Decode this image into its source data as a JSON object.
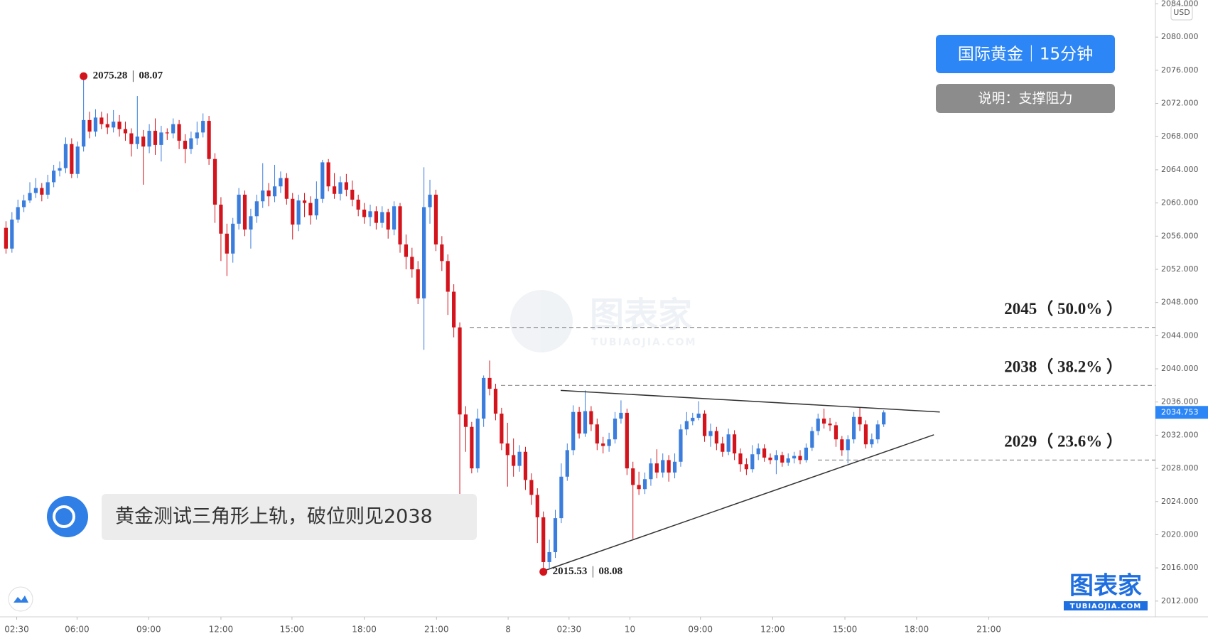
{
  "chart_data": {
    "type": "candlestick",
    "title": "国际黄金｜15分钟",
    "subtitle": "说明：支撑阻力",
    "annotation": "黄金测试三角形上轨，破位则见2038",
    "currency": "USD",
    "watermark": {
      "name": "图表家",
      "url": "TUBIAOJIA.COM"
    },
    "up_color": "#3b7ddd",
    "down_color": "#d3141c",
    "open": [
      2057.0,
      2054.5,
      2058.0,
      2059.5,
      2060.3,
      2061.2,
      2061.8,
      2061.0,
      2062.5,
      2063.9,
      2064.2,
      2067.1,
      2063.5,
      2066.8,
      2070.0,
      2068.6,
      2070.3,
      2069.5,
      2069.1,
      2069.8,
      2068.9,
      2068.4,
      2067.1,
      2068.0,
      2066.8,
      2068.7,
      2067.0,
      2068.5,
      2068.4,
      2069.5,
      2067.5,
      2066.5,
      2067.8,
      2068.5,
      2069.9,
      2065.3,
      2059.8,
      2056.3,
      2053.9,
      2057.5,
      2061.0,
      2056.8,
      2058.4,
      2060.2,
      2061.5,
      2060.8,
      2062.0,
      2063.0,
      2060.5,
      2057.4,
      2060.3,
      2060.0,
      2058.5,
      2060.5,
      2064.9,
      2062.0,
      2061.1,
      2062.5,
      2061.6,
      2060.4,
      2059.2,
      2058.3,
      2059.0,
      2057.6,
      2058.9,
      2056.8,
      2059.6,
      2055.0,
      2053.5,
      2052.0,
      2048.5,
      2059.5,
      2061.0,
      2055.0,
      2053.0,
      2049.3,
      2045.0,
      2034.5,
      2033.0,
      2028.0,
      2034.0,
      2038.9,
      2037.6,
      2034.6,
      2031.0,
      2029.6,
      2028.3,
      2030.0,
      2026.6,
      2024.8,
      2022.1,
      2016.7,
      2017.9,
      2022.0,
      2027.0,
      2030.2,
      2034.8,
      2032.2,
      2034.9,
      2033.3,
      2031.0,
      2030.7,
      2031.5,
      2034.0,
      2034.7,
      2028.0,
      2026.0,
      2025.5,
      2026.7,
      2028.6,
      2027.5,
      2029.0,
      2027.5,
      2028.8,
      2032.7,
      2033.7,
      2034.1,
      2034.6,
      2031.9,
      2032.5,
      2031.0,
      2030.0,
      2032.1,
      2029.8,
      2028.5,
      2027.9,
      2029.7,
      2030.4,
      2029.3,
      2029.0,
      2029.6,
      2028.7,
      2029.2,
      2029.5,
      2029.0,
      2030.5,
      2032.5,
      2034.0,
      2033.4,
      2033.2,
      2031.5,
      2030.2,
      2031.5,
      2034.2,
      2033.3,
      2030.9,
      2031.5,
      2033.3
    ],
    "high": [
      2057.8,
      2058.9,
      2060.4,
      2061.0,
      2062.5,
      2063.0,
      2062.4,
      2063.4,
      2064.6,
      2065.0,
      2067.9,
      2067.8,
      2067.4,
      2075.28,
      2071.0,
      2071.3,
      2071.0,
      2070.8,
      2071.2,
      2070.6,
      2069.8,
      2069.0,
      2072.9,
      2068.8,
      2069.5,
      2070.2,
      2069.3,
      2069.0,
      2070.2,
      2070.0,
      2068.3,
      2068.6,
      2069.8,
      2070.8,
      2070.5,
      2066.0,
      2060.7,
      2057.5,
      2058.2,
      2061.8,
      2061.5,
      2059.3,
      2061.0,
      2064.8,
      2062.4,
      2064.6,
      2063.8,
      2063.6,
      2061.2,
      2061.0,
      2061.2,
      2060.8,
      2062.6,
      2065.2,
      2065.3,
      2063.6,
      2063.2,
      2063.5,
      2062.7,
      2061.0,
      2060.0,
      2059.8,
      2059.6,
      2059.6,
      2059.3,
      2060.2,
      2060.0,
      2056.2,
      2054.6,
      2053.0,
      2064.3,
      2062.8,
      2061.6,
      2056.0,
      2053.8,
      2050.2,
      2045.6,
      2035.5,
      2033.6,
      2035.2,
      2039.2,
      2041.0,
      2038.2,
      2035.3,
      2033.5,
      2031.6,
      2030.8,
      2030.6,
      2027.4,
      2025.6,
      2022.8,
      2019.4,
      2023.0,
      2028.6,
      2031.0,
      2035.6,
      2035.4,
      2037.4,
      2035.5,
      2034.0,
      2031.8,
      2032.3,
      2034.8,
      2036.2,
      2035.2,
      2028.8,
      2027.6,
      2027.5,
      2029.2,
      2030.3,
      2029.8,
      2029.6,
      2029.8,
      2033.3,
      2034.8,
      2034.7,
      2036.1,
      2035.0,
      2033.4,
      2033.0,
      2031.8,
      2032.8,
      2032.6,
      2030.4,
      2029.2,
      2030.8,
      2031.0,
      2030.9,
      2029.8,
      2030.2,
      2030.0,
      2029.8,
      2030.0,
      2030.2,
      2031.0,
      2033.0,
      2034.6,
      2035.2,
      2034.1,
      2033.6,
      2031.9,
      2032.0,
      2034.8,
      2035.3,
      2033.8,
      2032.2,
      2033.8,
      2035.0
    ],
    "low": [
      2053.9,
      2054.0,
      2057.6,
      2058.9,
      2060.0,
      2060.6,
      2060.2,
      2060.5,
      2061.9,
      2063.2,
      2063.6,
      2063.0,
      2063.0,
      2066.2,
      2067.8,
      2068.0,
      2068.9,
      2068.3,
      2068.5,
      2068.0,
      2067.5,
      2065.6,
      2066.5,
      2062.2,
      2066.0,
      2065.8,
      2065.0,
      2067.6,
      2067.8,
      2066.5,
      2064.8,
      2065.9,
      2067.0,
      2067.9,
      2064.6,
      2057.6,
      2053.0,
      2051.2,
      2052.8,
      2056.8,
      2056.0,
      2054.5,
      2057.6,
      2059.4,
      2059.6,
      2060.1,
      2061.2,
      2059.8,
      2055.6,
      2056.6,
      2058.3,
      2057.4,
      2058.0,
      2060.0,
      2061.4,
      2060.5,
      2060.3,
      2060.8,
      2059.6,
      2058.4,
      2057.5,
      2057.2,
      2056.8,
      2057.0,
      2055.7,
      2056.1,
      2054.0,
      2052.0,
      2051.0,
      2047.8,
      2042.3,
      2057.5,
      2054.2,
      2051.8,
      2046.5,
      2043.8,
      2023.2,
      2030.0,
      2027.4,
      2027.5,
      2033.0,
      2036.8,
      2033.8,
      2030.2,
      2025.8,
      2027.0,
      2027.6,
      2025.4,
      2023.6,
      2019.0,
      2015.53,
      2016.0,
      2017.2,
      2021.4,
      2026.5,
      2029.6,
      2031.6,
      2031.8,
      2032.5,
      2030.2,
      2029.8,
      2030.0,
      2031.0,
      2033.4,
      2027.2,
      2019.5,
      2024.8,
      2024.9,
      2025.9,
      2026.8,
      2026.9,
      2026.4,
      2026.8,
      2028.2,
      2032.0,
      2033.2,
      2033.8,
      2031.2,
      2030.6,
      2030.2,
      2029.4,
      2029.6,
      2029.0,
      2027.6,
      2027.2,
      2027.5,
      2029.0,
      2028.8,
      2028.5,
      2027.3,
      2028.2,
      2028.3,
      2028.6,
      2028.5,
      2028.7,
      2030.1,
      2032.0,
      2032.8,
      2032.5,
      2030.6,
      2029.5,
      2028.6,
      2031.0,
      2032.5,
      2030.4,
      2030.5,
      2031.0,
      2033.0
    ],
    "close": [
      2054.5,
      2058.0,
      2059.5,
      2060.3,
      2061.2,
      2061.8,
      2061.0,
      2062.5,
      2063.9,
      2064.2,
      2067.1,
      2063.5,
      2066.8,
      2070.0,
      2068.6,
      2070.3,
      2069.5,
      2069.1,
      2069.8,
      2068.9,
      2068.4,
      2067.1,
      2068.0,
      2066.8,
      2068.7,
      2067.0,
      2068.5,
      2068.4,
      2069.5,
      2067.5,
      2066.5,
      2067.8,
      2068.5,
      2069.9,
      2065.3,
      2059.8,
      2056.3,
      2053.9,
      2057.5,
      2061.0,
      2056.8,
      2058.4,
      2060.2,
      2061.5,
      2060.8,
      2062.0,
      2063.0,
      2060.5,
      2057.4,
      2060.3,
      2060.0,
      2058.5,
      2060.5,
      2064.9,
      2062.0,
      2061.1,
      2062.5,
      2061.6,
      2060.4,
      2059.2,
      2058.3,
      2059.0,
      2057.6,
      2058.9,
      2056.8,
      2059.6,
      2055.0,
      2053.5,
      2052.0,
      2048.5,
      2059.5,
      2061.0,
      2055.0,
      2053.0,
      2049.3,
      2045.0,
      2034.5,
      2033.0,
      2028.0,
      2034.0,
      2038.9,
      2037.6,
      2034.6,
      2031.0,
      2029.6,
      2028.3,
      2030.0,
      2026.6,
      2024.8,
      2022.1,
      2016.7,
      2017.9,
      2022.0,
      2027.0,
      2030.2,
      2034.8,
      2032.2,
      2034.9,
      2033.3,
      2031.0,
      2030.7,
      2031.5,
      2034.0,
      2034.7,
      2028.0,
      2026.0,
      2025.5,
      2026.7,
      2028.6,
      2027.5,
      2029.0,
      2027.5,
      2028.8,
      2032.7,
      2033.7,
      2034.1,
      2034.6,
      2031.9,
      2032.5,
      2031.0,
      2030.0,
      2032.1,
      2029.8,
      2028.5,
      2027.9,
      2029.7,
      2030.4,
      2029.3,
      2029.0,
      2029.6,
      2028.7,
      2029.2,
      2029.5,
      2029.0,
      2030.5,
      2032.5,
      2034.0,
      2033.4,
      2033.2,
      2031.5,
      2030.2,
      2031.5,
      2034.2,
      2033.3,
      2030.9,
      2031.5,
      2033.3,
      2034.75
    ],
    "last_price": 2034.753,
    "markers": [
      {
        "candle": 13,
        "field": "high",
        "date": "08.07"
      },
      {
        "candle": 90,
        "field": "low",
        "date": "08.08"
      }
    ],
    "levels": [
      {
        "value": 2045,
        "label": "2045（ 50.0% ）"
      },
      {
        "value": 2038,
        "label": "2038（ 38.2% ）"
      },
      {
        "value": 2029,
        "label": "2029（ 23.6% ）"
      }
    ],
    "trendlines": [
      {
        "x": [
          92.9,
          156.4
        ],
        "y": [
          2037.4,
          2034.8
        ]
      },
      {
        "x": [
          90.3,
          155.4
        ],
        "y": [
          2015.7,
          2032.05
        ]
      }
    ],
    "xlim": [
      -1,
      192.5
    ],
    "xticks": [
      {
        "value": 1.8,
        "label": "02:30"
      },
      {
        "value": 11.9,
        "label": "06:00"
      },
      {
        "value": 23.9,
        "label": "09:00"
      },
      {
        "value": 36,
        "label": "12:00"
      },
      {
        "value": 47.9,
        "label": "15:00"
      },
      {
        "value": 60,
        "label": "18:00"
      },
      {
        "value": 72.1,
        "label": "21:00"
      },
      {
        "value": 84.1,
        "label": "8"
      },
      {
        "value": 94.3,
        "label": "02:30"
      },
      {
        "value": 104.5,
        "label": "10"
      },
      {
        "value": 116.3,
        "label": "09:00"
      },
      {
        "value": 128.4,
        "label": "12:00"
      },
      {
        "value": 140.5,
        "label": "15:00"
      },
      {
        "value": 152.5,
        "label": "18:00"
      },
      {
        "value": 164.6,
        "label": "21:00"
      }
    ],
    "ylim": [
      2010.1,
      2084.3
    ],
    "yticks": [
      {
        "value": 2012,
        "label": "2012.000"
      },
      {
        "value": 2016,
        "label": "2016.000"
      },
      {
        "value": 2020,
        "label": "2020.000"
      },
      {
        "value": 2024,
        "label": "2024.000"
      },
      {
        "value": 2028,
        "label": "2028.000"
      },
      {
        "value": 2032,
        "label": "2032.000"
      },
      {
        "value": 2036,
        "label": "2036.000"
      },
      {
        "value": 2040,
        "label": "2040.000"
      },
      {
        "value": 2044,
        "label": "2044.000"
      },
      {
        "value": 2048,
        "label": "2048.000"
      },
      {
        "value": 2052,
        "label": "2052.000"
      },
      {
        "value": 2056,
        "label": "2056.000"
      },
      {
        "value": 2060,
        "label": "2060.000"
      },
      {
        "value": 2064,
        "label": "2064.000"
      },
      {
        "value": 2068,
        "label": "2068.000"
      },
      {
        "value": 2072,
        "label": "2072.000"
      },
      {
        "value": 2076,
        "label": "2076.000"
      },
      {
        "value": 2080,
        "label": "2080.000"
      },
      {
        "value": 2084,
        "label": "2084.000"
      }
    ]
  }
}
